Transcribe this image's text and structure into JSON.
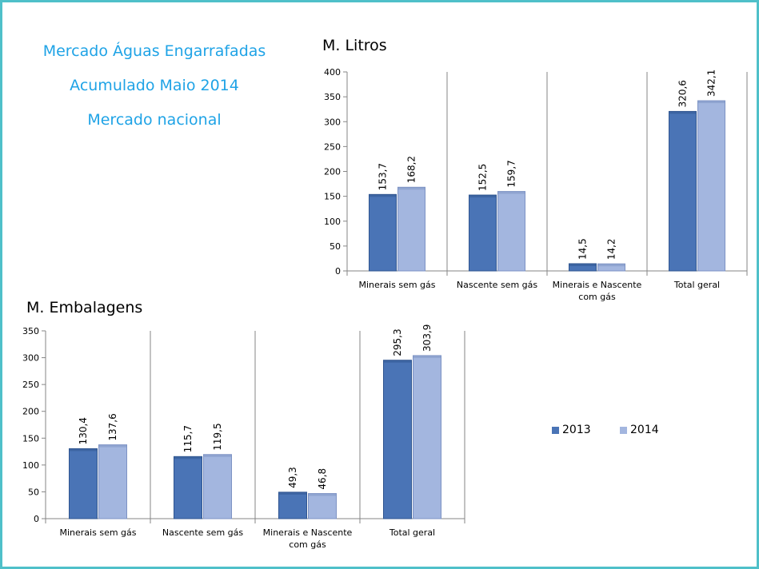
{
  "headlines": [
    "Mercado Águas Engarrafadas",
    "Acumulado Maio 2014",
    "Mercado nacional"
  ],
  "colors": {
    "series2013": "#4a74b6",
    "series2014": "#a3b6df",
    "headline": "#1fa3e6",
    "frame": "#4fc0c9"
  },
  "legend": {
    "position": "right",
    "items": [
      "2013",
      "2014"
    ]
  },
  "chart_data": [
    {
      "type": "bar",
      "title": "M. Litros",
      "categories": [
        "Minerais sem gás",
        "Nascente sem gás",
        "Minerais e Nascente com gás",
        "Total geral"
      ],
      "category_lines": [
        [
          "Minerais sem gás"
        ],
        [
          "Nascente sem gás"
        ],
        [
          "Minerais e Nascente",
          "com gás"
        ],
        [
          "Total geral"
        ]
      ],
      "series": [
        {
          "name": "2013",
          "values": [
            153.7,
            152.5,
            14.5,
            320.6
          ],
          "labels": [
            "153,7",
            "152,5",
            "14,5",
            "320,6"
          ]
        },
        {
          "name": "2014",
          "values": [
            168.2,
            159.7,
            14.2,
            342.1
          ],
          "labels": [
            "168,2",
            "159,7",
            "14,2",
            "342,1"
          ]
        }
      ],
      "ylim": [
        0,
        400
      ],
      "yticks": [
        0,
        50,
        100,
        150,
        200,
        250,
        300,
        350,
        400
      ]
    },
    {
      "type": "bar",
      "title": "M. Embalagens",
      "categories": [
        "Minerais sem gás",
        "Nascente sem gás",
        "Minerais e Nascente com gás",
        "Total geral"
      ],
      "category_lines": [
        [
          "Minerais sem gás"
        ],
        [
          "Nascente sem gás"
        ],
        [
          "Minerais e Nascente",
          "com gás"
        ],
        [
          "Total geral"
        ]
      ],
      "series": [
        {
          "name": "2013",
          "values": [
            130.4,
            115.7,
            49.3,
            295.3
          ],
          "labels": [
            "130,4",
            "115,7",
            "49,3",
            "295,3"
          ]
        },
        {
          "name": "2014",
          "values": [
            137.6,
            119.5,
            46.8,
            303.9
          ],
          "labels": [
            "137,6",
            "119,5",
            "46,8",
            "303,9"
          ]
        }
      ],
      "ylim": [
        0,
        350
      ],
      "yticks": [
        0,
        50,
        100,
        150,
        200,
        250,
        300,
        350
      ]
    }
  ]
}
